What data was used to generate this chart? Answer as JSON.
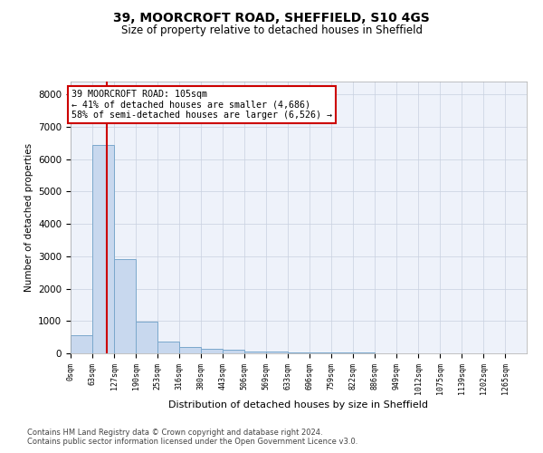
{
  "title1": "39, MOORCROFT ROAD, SHEFFIELD, S10 4GS",
  "title2": "Size of property relative to detached houses in Sheffield",
  "xlabel": "Distribution of detached houses by size in Sheffield",
  "ylabel": "Number of detached properties",
  "annotation_line1": "39 MOORCROFT ROAD: 105sqm",
  "annotation_line2": "← 41% of detached houses are smaller (4,686)",
  "annotation_line3": "58% of semi-detached houses are larger (6,526) →",
  "property_size": 105,
  "bar_edges": [
    0,
    63,
    126,
    189,
    252,
    315,
    378,
    441,
    504,
    567,
    630,
    693,
    756,
    819,
    882,
    945,
    1008,
    1071,
    1134,
    1197,
    1260,
    1323
  ],
  "bar_heights": [
    570,
    6430,
    2920,
    980,
    370,
    190,
    130,
    100,
    60,
    50,
    30,
    25,
    20,
    15,
    12,
    10,
    8,
    7,
    6,
    5,
    5
  ],
  "bar_color": "#c8d8ee",
  "bar_edge_color": "#7ba8cc",
  "vline_color": "#cc0000",
  "vline_x": 105,
  "ylim_max": 8400,
  "yticks": [
    0,
    1000,
    2000,
    3000,
    4000,
    5000,
    6000,
    7000,
    8000
  ],
  "tick_labels": [
    "0sqm",
    "63sqm",
    "127sqm",
    "190sqm",
    "253sqm",
    "316sqm",
    "380sqm",
    "443sqm",
    "506sqm",
    "569sqm",
    "633sqm",
    "696sqm",
    "759sqm",
    "822sqm",
    "886sqm",
    "949sqm",
    "1012sqm",
    "1075sqm",
    "1139sqm",
    "1202sqm",
    "1265sqm"
  ],
  "tick_positions": [
    0,
    63,
    126,
    189,
    252,
    315,
    378,
    441,
    504,
    567,
    630,
    693,
    756,
    819,
    882,
    945,
    1008,
    1071,
    1134,
    1197,
    1260
  ],
  "footnote1": "Contains HM Land Registry data © Crown copyright and database right 2024.",
  "footnote2": "Contains public sector information licensed under the Open Government Licence v3.0.",
  "background_color": "#eef2fa",
  "grid_color": "#c8d0e0"
}
